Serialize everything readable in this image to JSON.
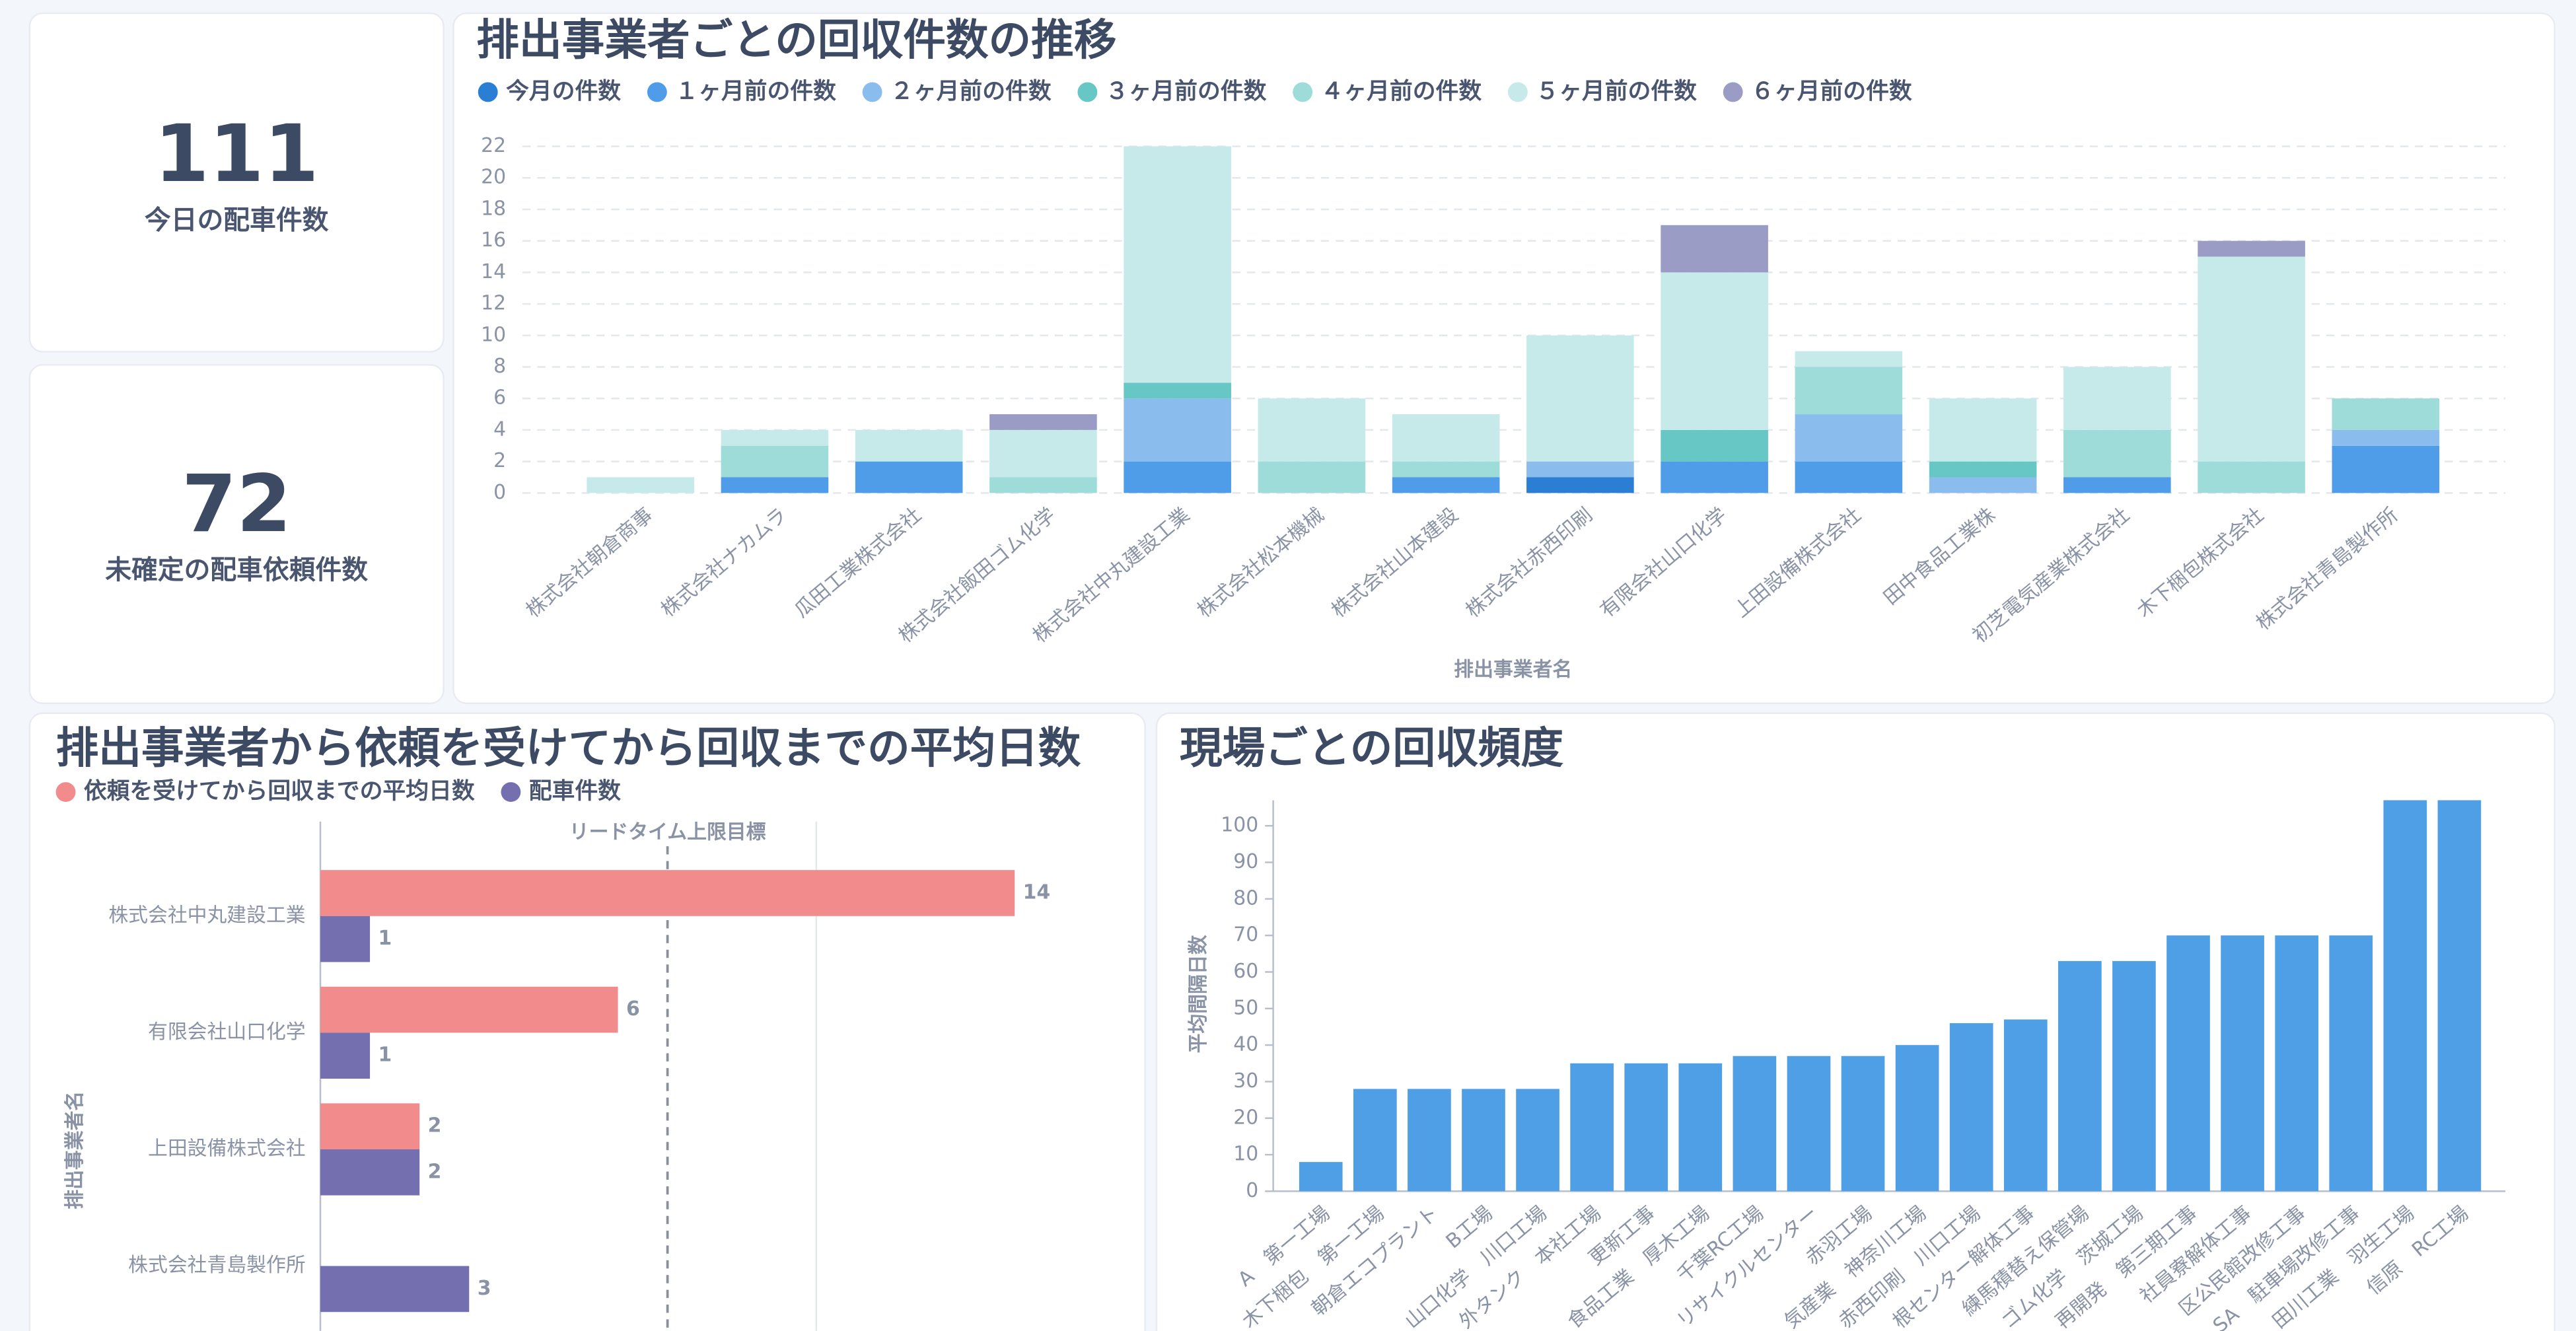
{
  "kpis": [
    {
      "value": 111,
      "label": "今日の配車件数"
    },
    {
      "value": 72,
      "label": "未確定の配車依頼件数"
    }
  ],
  "chart_data": [
    {
      "type": "stacked_bar",
      "title": "排出事業者ごとの回収件数の推移",
      "xlabel": "排出事業者名",
      "categories": [
        "株式会社朝倉商事",
        "株式会社ナカムラ",
        "瓜田工業株式会社",
        "株式会社飯田ゴム化学",
        "株式会社中丸建設工業",
        "株式会社松本機械",
        "株式会社山本建設",
        "株式会社赤西印刷",
        "有限会社山口化学",
        "上田設備株式会社",
        "田中食品工業株",
        "初芝電気産業株式会社",
        "木下梱包株式会社",
        "株式会社青島製作所"
      ],
      "series": [
        {
          "name": "今月の件数",
          "color": "#2a7fd4",
          "values": [
            0,
            0,
            0,
            0,
            0,
            0,
            0,
            1,
            0,
            0,
            0,
            0,
            0,
            0
          ]
        },
        {
          "name": "１ヶ月前の件数",
          "color": "#4f9de8",
          "values": [
            0,
            1,
            2,
            0,
            2,
            0,
            1,
            0,
            2,
            2,
            0,
            1,
            0,
            3
          ]
        },
        {
          "name": "２ヶ月前の件数",
          "color": "#8bbcee",
          "values": [
            0,
            0,
            0,
            0,
            4,
            0,
            0,
            1,
            0,
            3,
            1,
            0,
            0,
            1
          ]
        },
        {
          "name": "３ヶ月前の件数",
          "color": "#66c7c4",
          "values": [
            0,
            0,
            0,
            0,
            1,
            0,
            0,
            0,
            2,
            0,
            1,
            0,
            0,
            0
          ]
        },
        {
          "name": "４ヶ月前の件数",
          "color": "#9ddcd8",
          "values": [
            0,
            2,
            0,
            1,
            0,
            2,
            1,
            0,
            0,
            3,
            0,
            3,
            2,
            2
          ]
        },
        {
          "name": "５ヶ月前の件数",
          "color": "#c6eaea",
          "values": [
            1,
            1,
            2,
            3,
            15,
            4,
            3,
            8,
            10,
            1,
            4,
            4,
            13,
            0
          ]
        },
        {
          "name": "６ヶ月前の件数",
          "color": "#9b9cc6",
          "values": [
            0,
            0,
            0,
            1,
            0,
            0,
            0,
            0,
            3,
            0,
            0,
            0,
            1,
            0
          ]
        }
      ],
      "ylim": [
        0,
        22
      ],
      "yticks": [
        0,
        2,
        4,
        6,
        8,
        10,
        12,
        14,
        16,
        18,
        20,
        22
      ],
      "grid": true
    },
    {
      "type": "hbar",
      "title": "排出事業者から依頼を受けてから回収までの平均日数",
      "ylabel": "排出事業者名",
      "categories": [
        "株式会社中丸建設工業",
        "有限会社山口化学",
        "上田設備株式会社",
        "株式会社青島製作所"
      ],
      "series": [
        {
          "name": "依頼を受けてから回収までの平均日数",
          "color": "#f28b8b",
          "values": [
            14,
            6,
            2,
            null
          ]
        },
        {
          "name": "配車件数",
          "color": "#7470b0",
          "values": [
            1,
            1,
            2,
            3
          ]
        }
      ],
      "xlim": [
        0,
        16
      ],
      "xgrid": [
        10
      ],
      "reference": {
        "label": "リードタイム上限目標",
        "value": 7
      }
    },
    {
      "type": "bar",
      "title": "現場ごとの回収頻度",
      "ylabel": "平均間隔日数",
      "color": "#4f9fe6",
      "categories": [
        "A　第一工場",
        "木下梱包　第一工場",
        "朝倉エコプラント",
        "B工場",
        "山口化学　川口工場",
        "外タンク　本社工場",
        "更新工事",
        "食品工業　厚木工場",
        "千葉RC工場",
        "リサイクルセンター",
        "赤羽工場",
        "気産業　神奈川工場",
        "赤西印刷　川口工場",
        "根センター解体工事",
        "練馬積替え保管場",
        "ゴム化学　茨城工場",
        "再開発　第三期工事",
        "社員寮解体工事",
        "区公民館改修工事",
        "SA　駐車場改修工事",
        "田川工業　羽生工場",
        "信原　RC工場"
      ],
      "values": [
        8,
        28,
        28,
        28,
        28,
        35,
        35,
        35,
        37,
        37,
        37,
        40,
        46,
        47,
        63,
        63,
        70,
        70,
        70,
        70,
        107,
        107
      ],
      "ylim": [
        0,
        107
      ],
      "yticks": [
        0,
        10,
        20,
        30,
        40,
        50,
        60,
        70,
        80,
        90,
        100
      ],
      "grid": false
    }
  ]
}
